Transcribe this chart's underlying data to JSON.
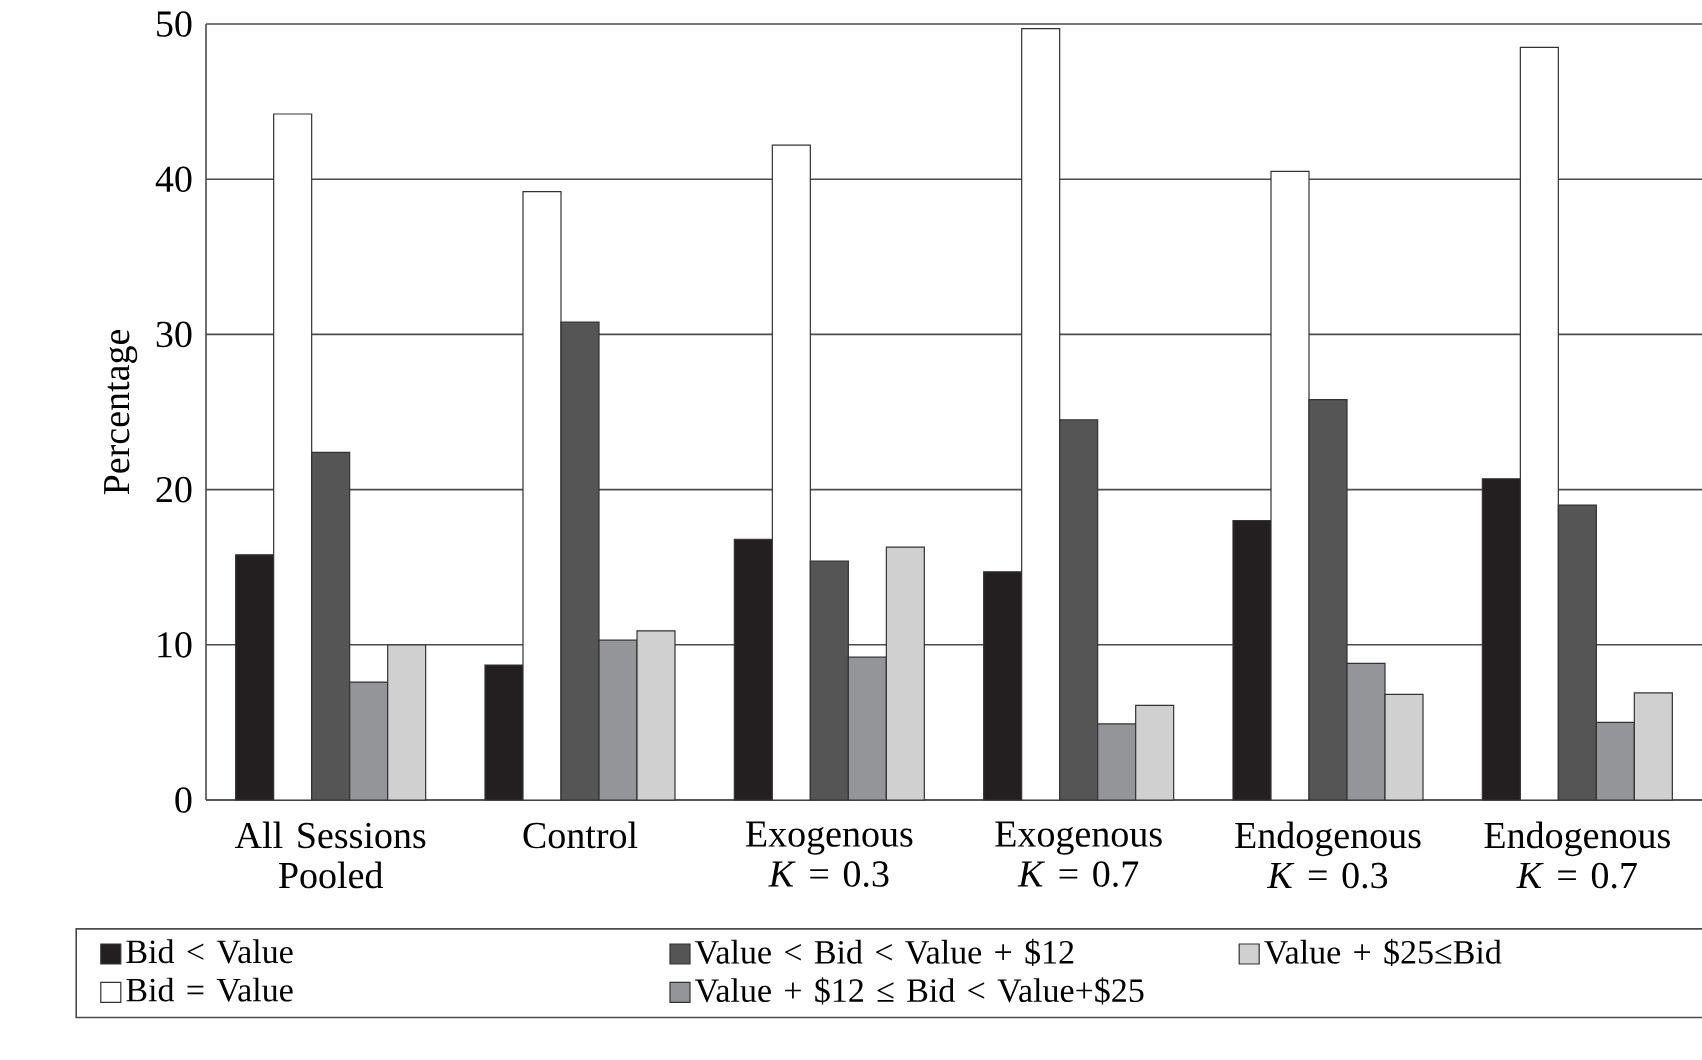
{
  "chart_data": {
    "type": "bar",
    "ylabel": "Percentage",
    "categories": [
      "All Sessions Pooled",
      "Control",
      "Exogenous *K* = 0.3",
      "Exogenous *K* = 0.7",
      "Endogenous *K* = 0.3",
      "Endogenous *K* = 0.7"
    ],
    "series": [
      {
        "name": "Bid < Value",
        "color": "#231f20",
        "values": [
          15.8,
          8.7,
          16.8,
          14.7,
          18.0,
          20.7
        ]
      },
      {
        "name": "Bid = Value",
        "color": "#ffffff",
        "values": [
          44.2,
          39.2,
          42.2,
          49.7,
          40.5,
          48.5
        ]
      },
      {
        "name": "Value < Bid < Value + $12",
        "color": "#555555",
        "values": [
          22.4,
          30.8,
          15.4,
          24.5,
          25.8,
          19.0
        ]
      },
      {
        "name": "Value + $12 ≤ Bid < Value+$25",
        "color": "#939598",
        "values": [
          7.6,
          10.3,
          9.2,
          4.9,
          8.8,
          5.0
        ]
      },
      {
        "name": "Value + $25≤Bid",
        "color": "#d0d0d0",
        "values": [
          10.0,
          10.9,
          16.3,
          6.1,
          6.8,
          6.9
        ]
      }
    ],
    "ylim": [
      0,
      50
    ],
    "yticks": [
      0,
      10,
      20,
      30,
      40,
      50
    ],
    "grid": "y",
    "legend": "bottom"
  }
}
